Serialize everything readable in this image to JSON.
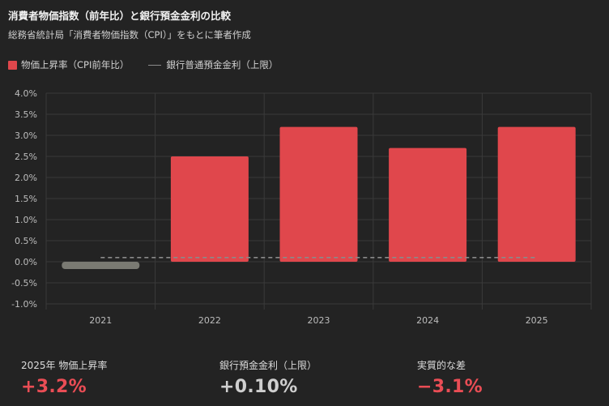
{
  "title": "消費者物価指数（前年比）と銀行預金金利の比較",
  "subtitle": "総務省統計局「消費者物価指数（CPI）」をもとに筆者作成",
  "legend": {
    "bar_series": "物価上昇率（CPI前年比）",
    "line_series": "銀行普通預金金利（上限）"
  },
  "colors": {
    "positive_bar": "#e0474c",
    "negative_bar": "#7a7a73",
    "deposit_line": "#8a8a8a",
    "accent_red": "#ea4d55"
  },
  "chart_data": {
    "type": "bar",
    "categories": [
      "2021",
      "2022",
      "2023",
      "2024",
      "2025"
    ],
    "series": [
      {
        "name": "物価上昇率（CPI前年比）",
        "type": "bar",
        "values": [
          -0.1,
          2.5,
          3.2,
          2.7,
          3.2
        ]
      },
      {
        "name": "銀行普通預金金利（上限）",
        "type": "line",
        "style": "dashed",
        "values": [
          0.1,
          0.1,
          0.1,
          0.1,
          0.1
        ]
      }
    ],
    "ylim": [
      -1.0,
      4.0
    ],
    "yticks": [
      -1.0,
      -0.5,
      0.0,
      0.5,
      1.0,
      1.5,
      2.0,
      2.5,
      3.0,
      3.5,
      4.0
    ],
    "ytick_labels": [
      "-1.0%",
      "-0.5%",
      "0.0%",
      "0.5%",
      "1.0%",
      "1.5%",
      "2.0%",
      "2.5%",
      "3.0%",
      "3.5%",
      "4.0%"
    ],
    "grid": true,
    "legend_position": "top-left"
  },
  "stats": [
    {
      "label": "2025年 物価上昇率",
      "value": "+3.2%",
      "tone": "red"
    },
    {
      "label": "銀行預金金利（上限）",
      "value": "+0.10%",
      "tone": "gray"
    },
    {
      "label": "実質的な差",
      "value": "−3.1%",
      "tone": "red"
    }
  ]
}
